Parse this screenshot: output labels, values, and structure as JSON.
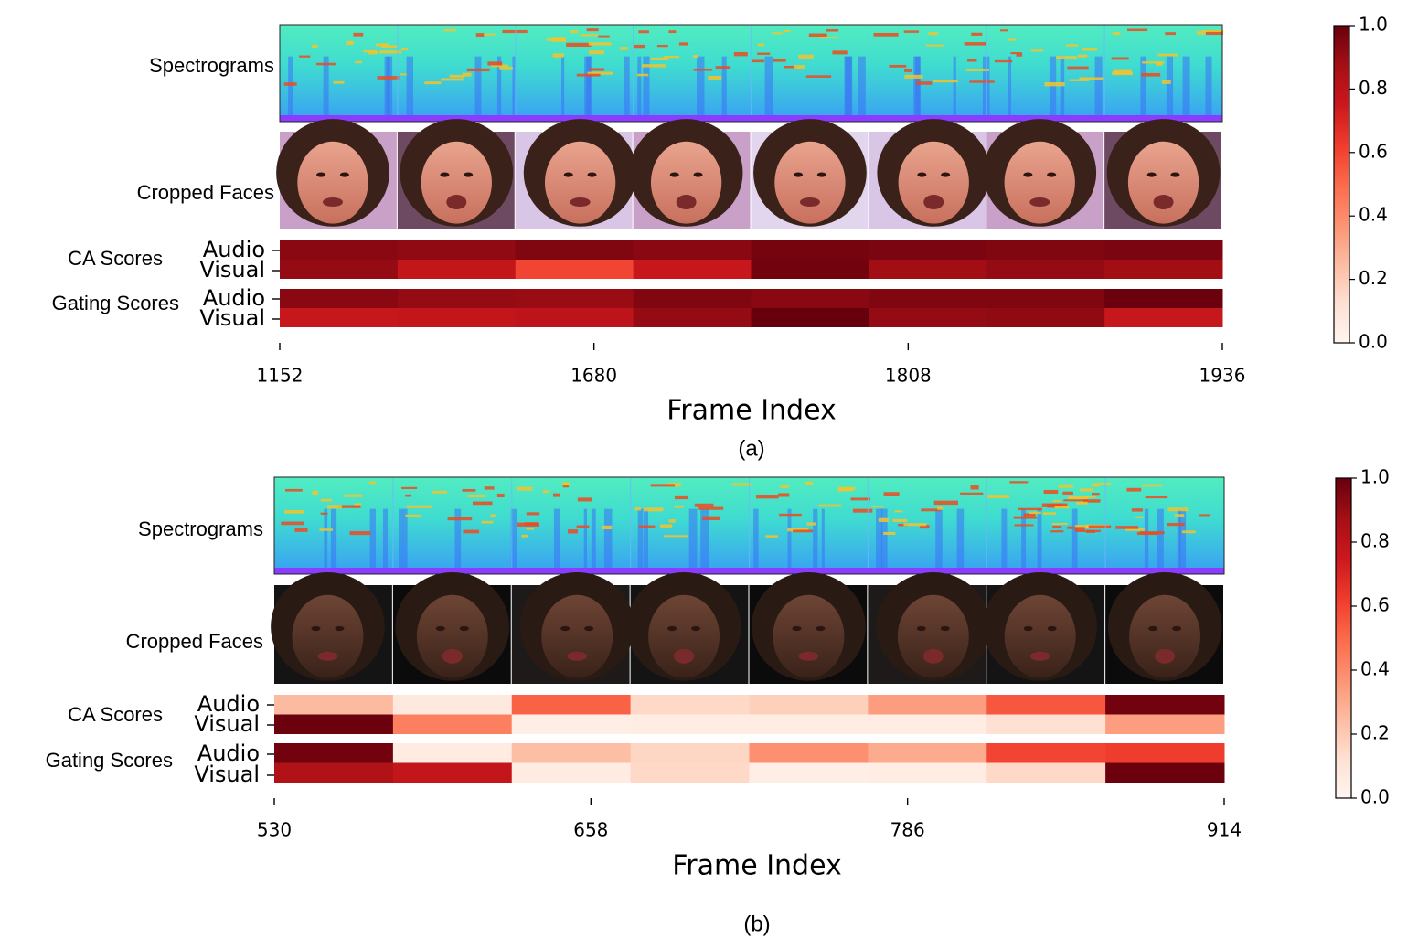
{
  "colors": {
    "cmap_stops": [
      "#fff5f0",
      "#fee0d2",
      "#fcbba1",
      "#fc9272",
      "#fb6a4a",
      "#ef3b2c",
      "#cb181d",
      "#a50f15",
      "#67000d"
    ],
    "spectrogram_base": "#35e0c8",
    "spectrogram_band": "#8a3cff"
  },
  "chart_data": [
    {
      "type": "heatmap",
      "panel_label": "(a)",
      "xlabel": "Frame Index",
      "xticks": [
        "1152",
        "1680",
        "1808",
        "1936"
      ],
      "row_labels": {
        "spectrograms": "Spectrograms",
        "faces": "Cropped Faces",
        "ca": "CA Scores",
        "gating": "Gating Scores",
        "audio": "Audio",
        "visual": "Visual"
      },
      "segments": 8,
      "ca_scores": {
        "audio": [
          0.93,
          0.92,
          0.95,
          0.93,
          0.97,
          0.96,
          0.95,
          0.96
        ],
        "visual": [
          0.91,
          0.78,
          0.6,
          0.76,
          0.98,
          0.88,
          0.91,
          0.88
        ]
      },
      "gating_scores": {
        "audio": [
          0.93,
          0.91,
          0.9,
          0.95,
          0.93,
          0.95,
          0.95,
          0.99
        ],
        "visual": [
          0.77,
          0.78,
          0.8,
          0.91,
          1.0,
          0.91,
          0.92,
          0.77
        ]
      },
      "colorbar": {
        "ticks": [
          "0.0",
          "0.2",
          "0.4",
          "0.6",
          "0.8",
          "1.0"
        ],
        "range": [
          0,
          1
        ]
      }
    },
    {
      "type": "heatmap",
      "panel_label": "(b)",
      "xlabel": "Frame Index",
      "xticks": [
        "530",
        "658",
        "786",
        "914"
      ],
      "row_labels": {
        "spectrograms": "Spectrograms",
        "faces": "Cropped Faces",
        "ca": "CA Scores",
        "gating": "Gating Scores",
        "audio": "Audio",
        "visual": "Visual"
      },
      "segments": 8,
      "ca_scores": {
        "audio": [
          0.25,
          0.07,
          0.52,
          0.15,
          0.18,
          0.34,
          0.55,
          0.98
        ],
        "visual": [
          0.99,
          0.43,
          0.04,
          0.05,
          0.05,
          0.05,
          0.12,
          0.34
        ]
      },
      "gating_scores": {
        "audio": [
          0.98,
          0.06,
          0.24,
          0.16,
          0.38,
          0.3,
          0.6,
          0.62
        ],
        "visual": [
          0.84,
          0.78,
          0.06,
          0.15,
          0.04,
          0.05,
          0.15,
          0.99
        ]
      },
      "colorbar": {
        "ticks": [
          "0.0",
          "0.2",
          "0.4",
          "0.6",
          "0.8",
          "1.0"
        ],
        "range": [
          0,
          1
        ]
      }
    }
  ]
}
